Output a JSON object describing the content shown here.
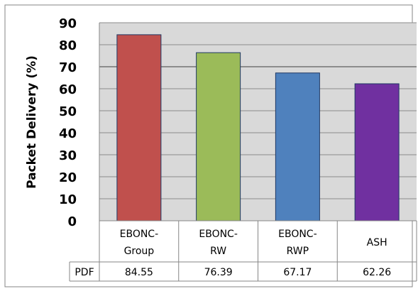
{
  "chart_data": {
    "type": "bar",
    "title": "",
    "xlabel": "",
    "ylabel": "Packet  Delivery (%)",
    "ylim": [
      0,
      90
    ],
    "yticks": [
      0,
      10,
      20,
      30,
      40,
      50,
      60,
      70,
      80,
      90
    ],
    "grid": true,
    "categories": [
      {
        "line1": "EBONC-",
        "line2": "Group"
      },
      {
        "line1": "EBONC-",
        "line2": "RW"
      },
      {
        "line1": "EBONC-",
        "line2": "RWP"
      },
      {
        "line1": "ASH",
        "line2": ""
      }
    ],
    "series": [
      {
        "name": "PDF",
        "values": [
          84.55,
          76.39,
          67.17,
          62.26
        ],
        "value_labels": [
          "84.55",
          "76.39",
          "67.17",
          "62.26"
        ],
        "colors": [
          "#C0504D",
          "#9BBB59",
          "#4F81BD",
          "#7030A0"
        ]
      }
    ],
    "data_table": true,
    "colors": {
      "plot_background": "#D9D9D9",
      "border": "#868686",
      "gridline": "#8C8C8C"
    }
  }
}
